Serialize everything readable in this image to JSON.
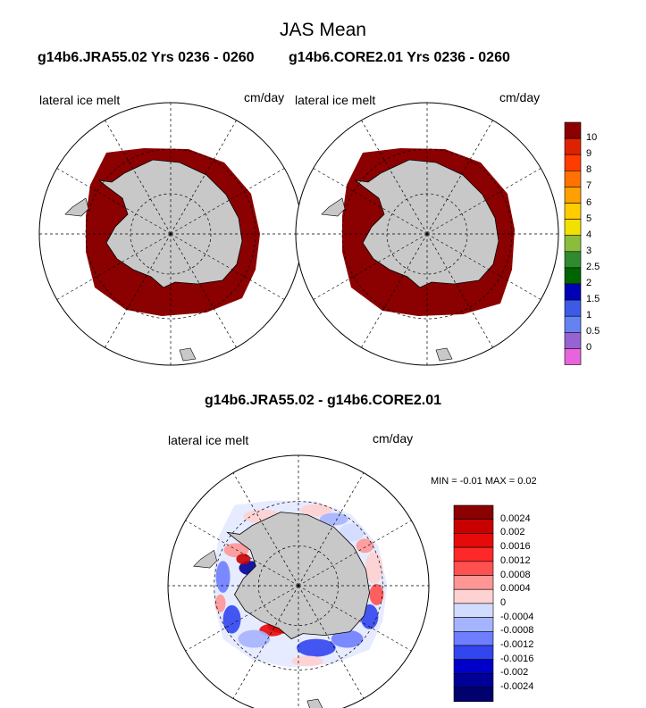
{
  "chart_data": {
    "type": "heatmap",
    "title": "JAS Mean",
    "panels": [
      {
        "title": "g14b6.JRA55.02  Yrs 0236 - 0260",
        "variable": "lateral ice melt",
        "units": "cm/day",
        "projection": "south polar stereographic",
        "field_summary": "values >= 10 cm/day across the sea-ice zone surrounding Antarctica"
      },
      {
        "title": "g14b6.CORE2.01  Yrs 0236 - 0260",
        "variable": "lateral ice melt",
        "units": "cm/day",
        "projection": "south polar stereographic",
        "field_summary": "values >= 10 cm/day across the sea-ice zone surrounding Antarctica"
      },
      {
        "title": "g14b6.JRA55.02 - g14b6.CORE2.01",
        "variable": "lateral ice melt",
        "units": "cm/day",
        "projection": "south polar stereographic",
        "min": -0.01,
        "max": 0.02,
        "minmax_text": "MIN =  -0.01 MAX =   0.02",
        "field_summary": "small positive and negative differences (about +/-0.0024) scattered around the ice edge"
      }
    ],
    "colorbar_main": {
      "levels": [
        "10",
        "9",
        "8",
        "7",
        "6",
        "5",
        "4",
        "3",
        "2.5",
        "2",
        "1.5",
        "1",
        "0.5",
        "0"
      ],
      "colors": [
        "#8b0000",
        "#dd2200",
        "#ff3c00",
        "#ff7200",
        "#ffa000",
        "#ffcc00",
        "#f2e000",
        "#8cbc3c",
        "#2e8b2e",
        "#006400",
        "#0000b4",
        "#3c5ae6",
        "#6482f0",
        "#9664d2",
        "#e664dc"
      ]
    },
    "colorbar_diff": {
      "levels": [
        "0.0024",
        "0.002",
        "0.0016",
        "0.0012",
        "0.0008",
        "0.0004",
        "0",
        "-0.0004",
        "-0.0008",
        "-0.0012",
        "-0.0016",
        "-0.002",
        "-0.0024"
      ],
      "colors": [
        "#8b0000",
        "#c80000",
        "#e60a0a",
        "#ff2828",
        "#ff5050",
        "#ff9696",
        "#ffd2d2",
        "#d2dcff",
        "#a5b4ff",
        "#6e7eff",
        "#3246f0",
        "#0000c8",
        "#000096",
        "#00006e"
      ]
    }
  }
}
